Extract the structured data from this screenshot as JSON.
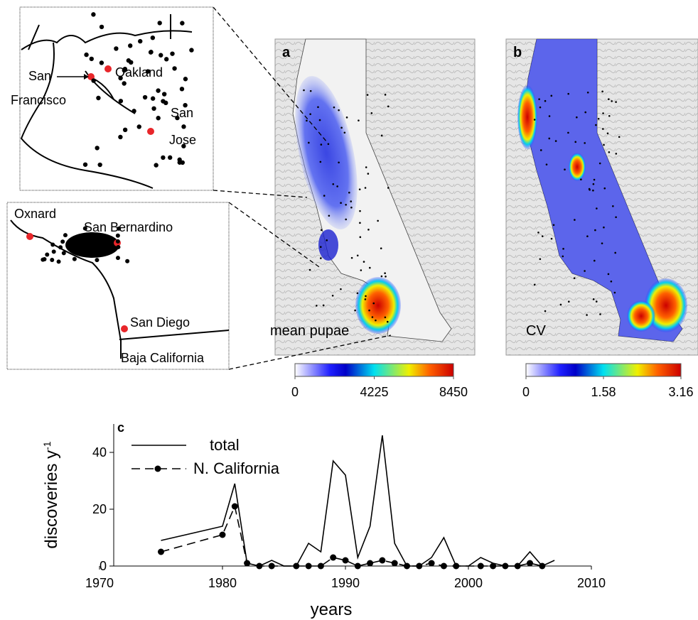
{
  "insets": {
    "north": {
      "labels": [
        "San",
        "Francisco",
        "Oakland",
        "San",
        "Jose"
      ]
    },
    "south": {
      "labels": [
        "Oxnard",
        "San Bernardino",
        "San Diego",
        "Baja California"
      ]
    }
  },
  "maps": [
    {
      "label": "a",
      "caption": "mean pupae",
      "colorbar": {
        "lim": [
          0,
          8450
        ],
        "ticks": [
          0,
          4225,
          8450
        ]
      }
    },
    {
      "label": "b",
      "caption": "CV",
      "colorbar": {
        "lim": [
          0,
          3.16
        ],
        "ticks": [
          0,
          1.58,
          3.16
        ]
      }
    }
  ],
  "chart_data": {
    "type": "line",
    "panel_label": "c",
    "xlabel": "years",
    "ylabel": [
      "discoveries y",
      "-1"
    ],
    "xlim": [
      1970,
      2010
    ],
    "xticks": [
      1970,
      1980,
      1990,
      2000,
      2010
    ],
    "ylim": [
      0,
      50
    ],
    "yticks": [
      0,
      20,
      40
    ],
    "series": [
      {
        "name": "total",
        "color": "#000000",
        "dashed": false,
        "markers": false,
        "x": [
          1975,
          1980,
          1981,
          1982,
          1983,
          1984,
          1985,
          1986,
          1987,
          1988,
          1989,
          1990,
          1991,
          1992,
          1993,
          1994,
          1995,
          1996,
          1997,
          1998,
          1999,
          2000,
          2001,
          2002,
          2003,
          2004,
          2005,
          2006,
          2007
        ],
        "values": [
          9,
          14,
          29,
          1,
          0,
          2,
          0,
          0,
          8,
          5,
          37,
          32,
          3,
          14,
          46,
          8,
          0,
          0,
          3,
          10,
          0,
          0,
          3,
          1,
          0,
          0,
          5,
          0,
          2
        ]
      },
      {
        "name": "N. California",
        "color": "#000000",
        "dashed": true,
        "markers": true,
        "x": [
          1975,
          1980,
          1981,
          1982,
          1983,
          1984,
          1986,
          1987,
          1988,
          1989,
          1990,
          1991,
          1992,
          1993,
          1994,
          1995,
          1996,
          1997,
          1998,
          1999,
          2001,
          2002,
          2003,
          2004,
          2005,
          2006
        ],
        "values": [
          5,
          11,
          21,
          1,
          0,
          0,
          0,
          0,
          0,
          3,
          2,
          0,
          1,
          2,
          1,
          0,
          0,
          1,
          0,
          0,
          0,
          0,
          0,
          0,
          1,
          0
        ]
      }
    ]
  }
}
